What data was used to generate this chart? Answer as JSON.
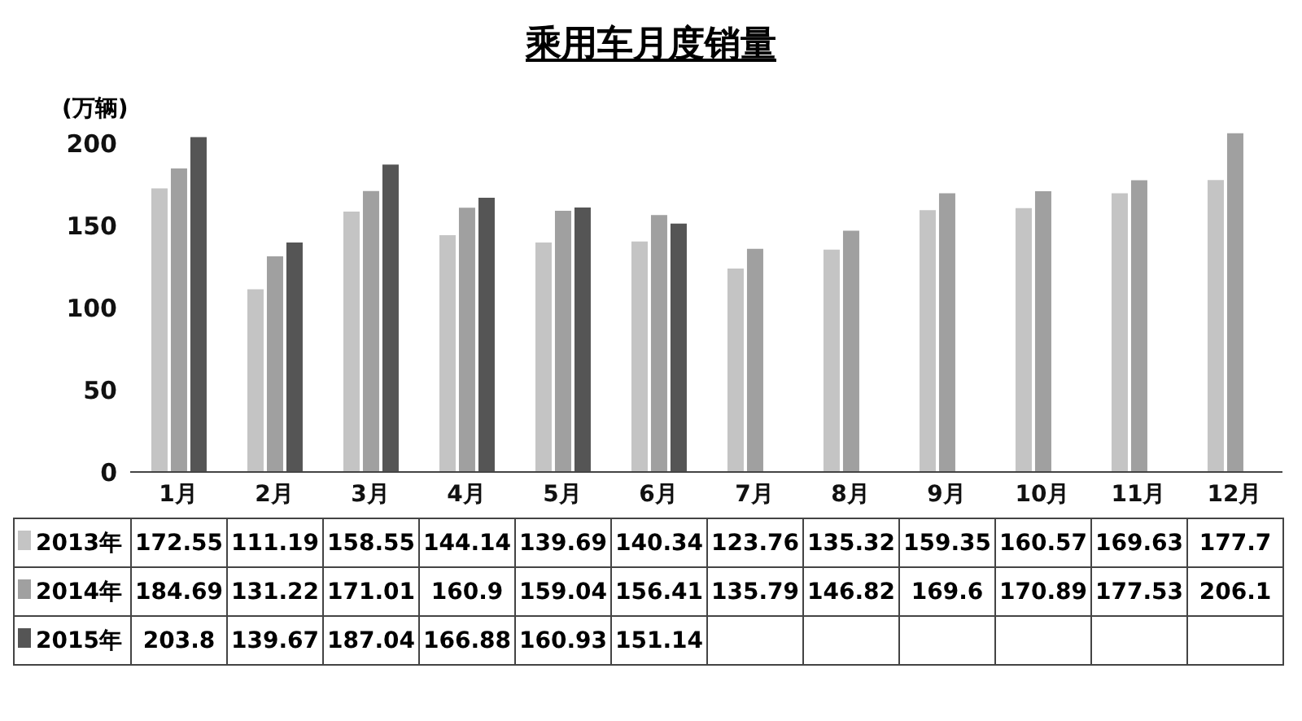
{
  "chart_data": {
    "type": "bar",
    "title": "乘用车月度销量",
    "ylabel": "(万辆)",
    "categories": [
      "1月",
      "2月",
      "3月",
      "4月",
      "5月",
      "6月",
      "7月",
      "8月",
      "9月",
      "10月",
      "11月",
      "12月"
    ],
    "series": [
      {
        "name": "2013年",
        "color": "#c4c4c4",
        "values": [
          172.55,
          111.19,
          158.55,
          144.14,
          139.69,
          140.34,
          123.76,
          135.32,
          159.35,
          160.57,
          169.63,
          177.7
        ]
      },
      {
        "name": "2014年",
        "color": "#a0a0a0",
        "values": [
          184.69,
          131.22,
          171.01,
          160.9,
          159.04,
          156.41,
          135.79,
          146.82,
          169.6,
          170.89,
          177.53,
          206.1
        ]
      },
      {
        "name": "2015年",
        "color": "#555555",
        "values": [
          203.8,
          139.67,
          187.04,
          166.88,
          160.93,
          151.14,
          null,
          null,
          null,
          null,
          null,
          null
        ]
      }
    ],
    "ylim": [
      0,
      210
    ],
    "yticks": [
      0,
      50,
      100,
      150,
      200
    ],
    "legend": "bottom",
    "data_labels": true
  }
}
